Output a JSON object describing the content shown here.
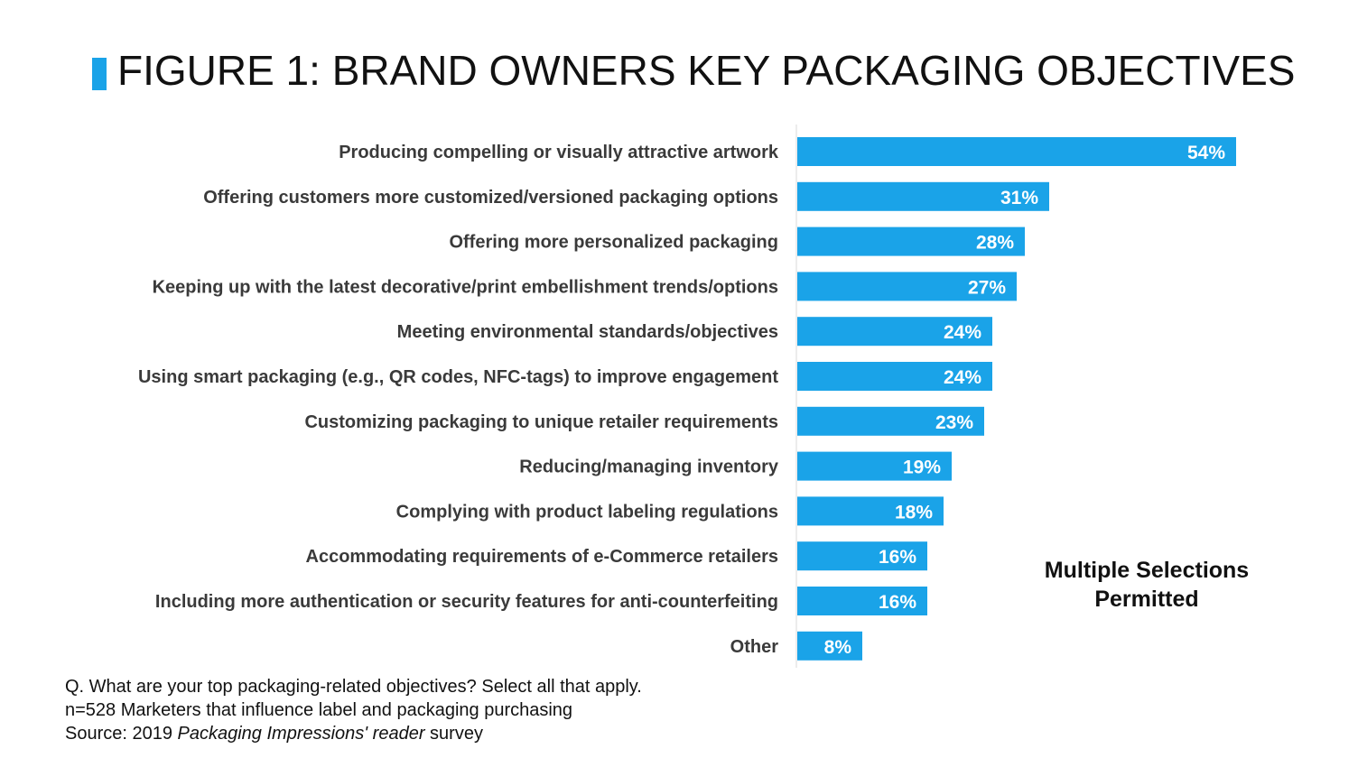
{
  "title": "FIGURE 1: BRAND OWNERS KEY PACKAGING OBJECTIVES",
  "accent_color": "#1aa3e8",
  "note": [
    "Multiple Selections",
    "Permitted"
  ],
  "footer": {
    "question": "Q. What are your top packaging-related objectives? Select all that apply.",
    "sample": "n=528 Marketers that influence label and packaging purchasing",
    "source_prefix": "Source: 2019 ",
    "source_italic": "Packaging Impressions' reader",
    "source_suffix": " survey"
  },
  "chart_data": {
    "type": "bar",
    "orientation": "horizontal",
    "categories": [
      "Producing compelling or visually attractive artwork",
      "Offering customers more customized/versioned packaging options",
      "Offering more personalized packaging",
      "Keeping up with the latest decorative/print embellishment trends/options",
      "Meeting environmental standards/objectives",
      "Using smart packaging (e.g., QR codes,  NFC-tags) to improve engagement",
      "Customizing packaging to unique retailer requirements",
      "Reducing/managing inventory",
      "Complying with product labeling regulations",
      "Accommodating requirements of e-Commerce retailers",
      "Including more authentication or security features for anti-counterfeiting",
      "Other"
    ],
    "values": [
      54,
      31,
      28,
      27,
      24,
      24,
      23,
      19,
      18,
      16,
      16,
      8
    ],
    "value_labels": [
      "54%",
      "31%",
      "28%",
      "27%",
      "24%",
      "24%",
      "23%",
      "19%",
      "18%",
      "16%",
      "16%",
      "8%"
    ],
    "unit": "%",
    "bar_color": "#1aa3e8",
    "xlim": [
      0,
      60
    ],
    "grid": false,
    "legend": "none"
  }
}
